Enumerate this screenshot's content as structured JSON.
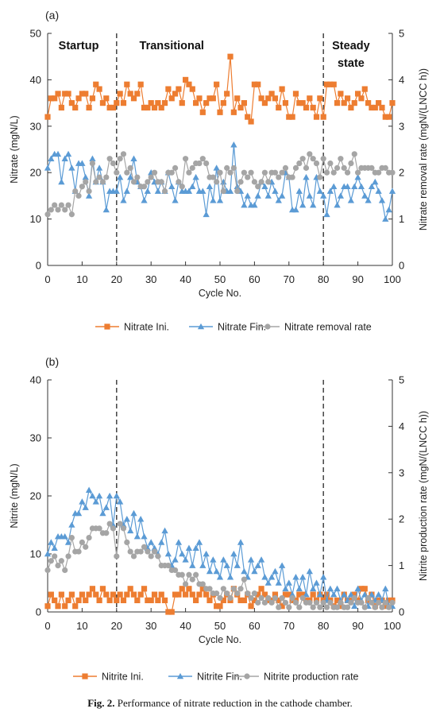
{
  "caption": {
    "label": "Fig. 2.",
    "text": "Performance of nitrate reduction in the cathode chamber."
  },
  "colors": {
    "ini": "#ED7D31",
    "fin": "#5B9BD5",
    "rate": "#A5A5A5"
  },
  "chart_data": [
    {
      "type": "line",
      "panel": "(a)",
      "x": [
        0,
        1,
        2,
        3,
        4,
        5,
        6,
        7,
        8,
        9,
        10,
        11,
        12,
        13,
        14,
        15,
        16,
        17,
        18,
        19,
        20,
        21,
        22,
        23,
        24,
        25,
        26,
        27,
        28,
        29,
        30,
        31,
        32,
        33,
        34,
        35,
        36,
        37,
        38,
        39,
        40,
        41,
        42,
        43,
        44,
        45,
        46,
        47,
        48,
        49,
        50,
        51,
        52,
        53,
        54,
        55,
        56,
        57,
        58,
        59,
        60,
        61,
        62,
        63,
        64,
        65,
        66,
        67,
        68,
        69,
        70,
        71,
        72,
        73,
        74,
        75,
        76,
        77,
        78,
        79,
        80,
        81,
        82,
        83,
        84,
        85,
        86,
        87,
        88,
        89,
        90,
        91,
        92,
        93,
        94,
        95,
        96,
        97,
        98,
        99,
        100
      ],
      "xlabel": "Cycle No.",
      "xlim": [
        0,
        100
      ],
      "xticks": [
        0,
        10,
        20,
        30,
        40,
        50,
        60,
        70,
        80,
        90,
        100
      ],
      "ylabel": "Nitrate (mgN/L)",
      "ylim": [
        0,
        50
      ],
      "yticks": [
        0,
        10,
        20,
        30,
        40,
        50
      ],
      "y2label": "Nitrate removal rate (mgN/(LNCC h))",
      "y2lim": [
        0,
        5
      ],
      "y2ticks": [
        0,
        1,
        2,
        3,
        4,
        5
      ],
      "vlines": [
        20,
        80
      ],
      "regions": [
        {
          "label": "Startup",
          "at": 9
        },
        {
          "label": "Transitional",
          "at": 36
        },
        {
          "label": "Steady",
          "at": 88
        },
        {
          "label": "state",
          "at": 88
        }
      ],
      "legend": "bottom",
      "series": [
        {
          "name": "Nitrate Ini.",
          "marker": "square",
          "axis": "left",
          "values": [
            32,
            36,
            36,
            37,
            34,
            37,
            37,
            35,
            34,
            36,
            37,
            37,
            34,
            36,
            39,
            38,
            35,
            36,
            34,
            34,
            35,
            37,
            35,
            39,
            37,
            36,
            37,
            39,
            34,
            34,
            35,
            34,
            35,
            34,
            35,
            38,
            36,
            37,
            38,
            35,
            40,
            39,
            38,
            35,
            36,
            33,
            35,
            36,
            36,
            39,
            33,
            35,
            37,
            45,
            33,
            36,
            34,
            35,
            32,
            31,
            39,
            39,
            36,
            35,
            36,
            37,
            36,
            34,
            38,
            35,
            32,
            32,
            37,
            35,
            35,
            34,
            36,
            34,
            32,
            36,
            32,
            39,
            39,
            39,
            35,
            37,
            35,
            36,
            34,
            35,
            37,
            36,
            38,
            35,
            34,
            34,
            35,
            34,
            32,
            32,
            35
          ]
        },
        {
          "name": "Nitrate Fin.",
          "marker": "triangle",
          "axis": "left",
          "values": [
            21,
            23,
            24,
            24,
            18,
            23,
            24,
            21,
            16,
            22,
            22,
            19,
            15,
            23,
            18,
            21,
            18,
            12,
            16,
            16,
            16,
            19,
            14,
            16,
            19,
            23,
            18,
            17,
            14,
            16,
            20,
            18,
            16,
            18,
            16,
            20,
            17,
            14,
            18,
            16,
            16,
            16,
            17,
            19,
            16,
            16,
            11,
            17,
            14,
            21,
            14,
            18,
            16,
            16,
            26,
            17,
            16,
            13,
            15,
            13,
            13,
            15,
            18,
            17,
            15,
            18,
            16,
            14,
            15,
            20,
            19,
            12,
            12,
            16,
            13,
            19,
            15,
            13,
            19,
            16,
            15,
            11,
            16,
            17,
            13,
            15,
            17,
            17,
            14,
            17,
            19,
            17,
            15,
            14,
            17,
            18,
            16,
            14,
            10,
            12,
            16
          ]
        },
        {
          "name": "Nitrate removal rate",
          "marker": "circle",
          "axis": "right",
          "values": [
            1.1,
            1.2,
            1.3,
            1.2,
            1.3,
            1.2,
            1.3,
            1.1,
            1.6,
            1.5,
            1.7,
            1.8,
            1.6,
            2.2,
            1.8,
            1.9,
            1.8,
            1.9,
            2.3,
            2.2,
            2.0,
            2.3,
            2.4,
            2.0,
            2.1,
            1.8,
            1.9,
            1.7,
            1.7,
            1.8,
            1.9,
            2.0,
            1.8,
            1.8,
            1.6,
            2.0,
            2.0,
            2.1,
            1.8,
            1.7,
            2.3,
            2.0,
            2.1,
            2.2,
            2.2,
            2.3,
            2.2,
            1.9,
            1.9,
            1.8,
            2.0,
            1.6,
            2.1,
            2.0,
            2.1,
            1.6,
            1.8,
            2.0,
            1.9,
            2.0,
            1.8,
            1.7,
            1.8,
            2.0,
            1.8,
            2.0,
            2.0,
            1.9,
            2.0,
            2.1,
            1.9,
            1.9,
            2.1,
            2.2,
            2.3,
            2.1,
            2.4,
            2.3,
            2.2,
            1.9,
            2.3,
            2.0,
            2.2,
            2.0,
            2.1,
            2.3,
            2.1,
            2.0,
            2.2,
            2.4,
            2.0,
            2.1,
            2.1,
            2.1,
            2.1,
            2.0,
            2.0,
            2.1,
            2.1,
            2.0,
            2.0
          ]
        }
      ]
    },
    {
      "type": "line",
      "panel": "(b)",
      "x": [
        0,
        1,
        2,
        3,
        4,
        5,
        6,
        7,
        8,
        9,
        10,
        11,
        12,
        13,
        14,
        15,
        16,
        17,
        18,
        19,
        20,
        21,
        22,
        23,
        24,
        25,
        26,
        27,
        28,
        29,
        30,
        31,
        32,
        33,
        34,
        35,
        36,
        37,
        38,
        39,
        40,
        41,
        42,
        43,
        44,
        45,
        46,
        47,
        48,
        49,
        50,
        51,
        52,
        53,
        54,
        55,
        56,
        57,
        58,
        59,
        60,
        61,
        62,
        63,
        64,
        65,
        66,
        67,
        68,
        69,
        70,
        71,
        72,
        73,
        74,
        75,
        76,
        77,
        78,
        79,
        80,
        81,
        82,
        83,
        84,
        85,
        86,
        87,
        88,
        89,
        90,
        91,
        92,
        93,
        94,
        95,
        96,
        97,
        98,
        99,
        100
      ],
      "xlabel": "Cycle No.",
      "xlim": [
        0,
        100
      ],
      "xticks": [
        0,
        10,
        20,
        30,
        40,
        50,
        60,
        70,
        80,
        90,
        100
      ],
      "ylabel": "Nitrite (mgN/L)",
      "ylim": [
        0,
        40
      ],
      "yticks": [
        0,
        10,
        20,
        30,
        40
      ],
      "y2label": "Nitrite production rate (mgN/(LNCC h))",
      "y2lim": [
        0,
        5
      ],
      "y2ticks": [
        0,
        1,
        2,
        3,
        4,
        5
      ],
      "vlines": [
        20,
        80
      ],
      "legend": "bottom",
      "series": [
        {
          "name": "Nitrite Ini.",
          "marker": "square",
          "axis": "left",
          "values": [
            1,
            3,
            2,
            1,
            3,
            1,
            2,
            3,
            1,
            2,
            3,
            2,
            3,
            4,
            3,
            2,
            4,
            3,
            2,
            3,
            2,
            3,
            2,
            3,
            4,
            3,
            2,
            3,
            4,
            2,
            2,
            3,
            2,
            3,
            2,
            0,
            0,
            3,
            3,
            4,
            3,
            4,
            3,
            2,
            3,
            4,
            3,
            2,
            3,
            1,
            1,
            2,
            3,
            2,
            4,
            3,
            2,
            2,
            3,
            1,
            2,
            3,
            4,
            3,
            2,
            2,
            3,
            2,
            1,
            3,
            3,
            2,
            2,
            3,
            3,
            2,
            2,
            3,
            2,
            3,
            2,
            3,
            2,
            1,
            2,
            1,
            3,
            2,
            2,
            3,
            2,
            4,
            4,
            2,
            3,
            1,
            2,
            2,
            1,
            2,
            2
          ]
        },
        {
          "name": "Nitrite Fin.",
          "marker": "triangle",
          "axis": "left",
          "values": [
            10,
            12,
            11,
            13,
            13,
            13,
            12,
            15,
            17,
            17,
            19,
            18,
            21,
            20,
            19,
            20,
            17,
            18,
            20,
            15,
            20,
            19,
            15,
            16,
            14,
            17,
            13,
            16,
            13,
            11,
            12,
            11,
            10,
            12,
            14,
            10,
            8,
            9,
            12,
            10,
            9,
            11,
            8,
            11,
            12,
            8,
            10,
            7,
            9,
            7,
            6,
            9,
            8,
            6,
            10,
            8,
            12,
            7,
            6,
            9,
            7,
            8,
            9,
            6,
            5,
            6,
            7,
            5,
            8,
            4,
            5,
            3,
            6,
            4,
            6,
            3,
            7,
            4,
            5,
            3,
            6,
            2,
            4,
            3,
            4,
            2,
            3,
            2,
            3,
            1,
            4,
            2,
            3,
            1,
            3,
            2,
            3,
            2,
            4,
            1,
            1
          ]
        },
        {
          "name": "Nitrite production rate",
          "marker": "circle",
          "axis": "right",
          "values": [
            0.9,
            1.1,
            1.2,
            1.0,
            1.1,
            0.9,
            1.2,
            1.6,
            1.3,
            1.3,
            1.5,
            1.4,
            1.6,
            1.8,
            1.8,
            1.8,
            1.7,
            1.7,
            1.9,
            1.8,
            1.2,
            1.9,
            1.8,
            1.5,
            1.3,
            1.2,
            1.3,
            1.3,
            1.4,
            1.3,
            1.2,
            1.3,
            1.2,
            1.0,
            1.0,
            1.0,
            0.9,
            0.9,
            0.8,
            0.8,
            0.6,
            0.8,
            0.7,
            0.8,
            0.6,
            0.6,
            0.5,
            0.5,
            0.4,
            0.4,
            0.3,
            0.5,
            0.4,
            0.3,
            0.5,
            0.4,
            0.5,
            0.7,
            0.4,
            0.3,
            0.4,
            0.2,
            0.3,
            0.2,
            0.3,
            0.2,
            0.3,
            0.1,
            0.3,
            0.2,
            0.1,
            0.3,
            0.2,
            0.1,
            0.3,
            0.2,
            0.2,
            0.1,
            0.2,
            0.1,
            0.2,
            0.1,
            0.2,
            0.1,
            0.1,
            0.2,
            0.1,
            0.1,
            0.2,
            0.3,
            0.2,
            0.2,
            0.1,
            0.3,
            0.2,
            0.1,
            0.2,
            0.1,
            0.2,
            0.1,
            0.2
          ]
        }
      ]
    }
  ]
}
